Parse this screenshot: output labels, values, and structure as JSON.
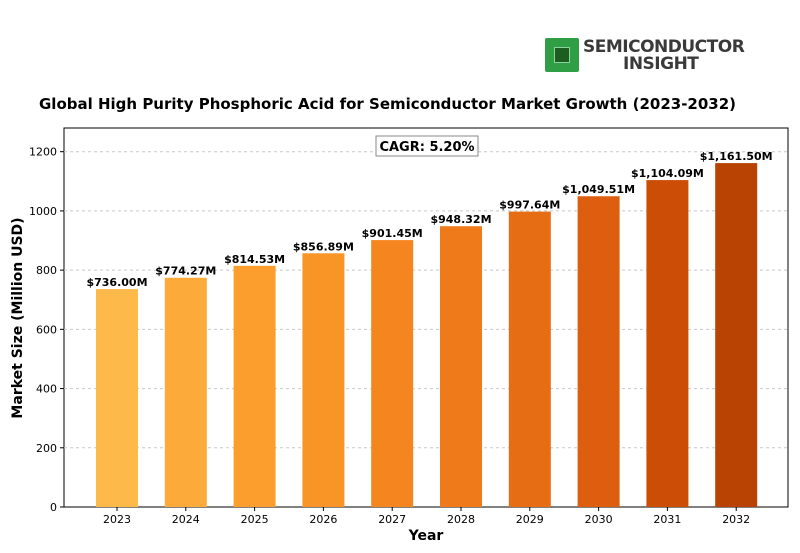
{
  "logo": {
    "line1": "SEMICONDUCTOR",
    "line2": "INSIGHT"
  },
  "chart_data": {
    "type": "bar",
    "title": "Global High Purity Phosphoric Acid for Semiconductor Market Growth (2023-2032)",
    "xlabel": "Year",
    "ylabel": "Market Size (Million USD)",
    "ylim": [
      0,
      1280
    ],
    "yticks": [
      0,
      200,
      400,
      600,
      800,
      1000,
      1200
    ],
    "grid": true,
    "annotation": "CAGR: 5.20%",
    "categories": [
      "2023",
      "2024",
      "2025",
      "2026",
      "2027",
      "2028",
      "2029",
      "2030",
      "2031",
      "2032"
    ],
    "values": [
      736.0,
      774.27,
      814.53,
      856.89,
      901.45,
      948.32,
      997.64,
      1049.51,
      1104.09,
      1161.5
    ],
    "labels": [
      "$736.00M",
      "$774.27M",
      "$814.53M",
      "$856.89M",
      "$901.45M",
      "$948.32M",
      "$997.64M",
      "$1,049.51M",
      "$1,104.09M",
      "$1,161.50M"
    ],
    "colors": [
      "#fdb94a",
      "#fcaa3a",
      "#fb9e2e",
      "#f89526",
      "#f5861f",
      "#ee7a1a",
      "#e66d14",
      "#dc5e0e",
      "#cc4d06",
      "#b84302"
    ]
  }
}
